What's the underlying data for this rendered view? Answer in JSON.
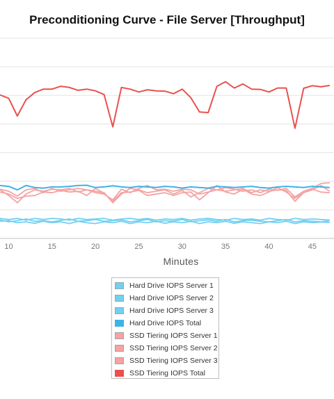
{
  "chart_data": {
    "type": "line",
    "title": "Preconditioning Curve - File Server [Throughput]",
    "xlabel": "Minutes",
    "ylabel": "",
    "x_ticks": [
      10,
      15,
      20,
      25,
      30,
      35,
      40,
      45
    ],
    "xlim": [
      9,
      47.5
    ],
    "ylim": [
      0,
      7
    ],
    "grid": true,
    "legend_position": "bottom",
    "x": [
      9,
      10,
      11,
      12,
      13,
      14,
      15,
      16,
      17,
      18,
      19,
      20,
      21,
      22,
      23,
      24,
      25,
      26,
      27,
      28,
      29,
      30,
      31,
      32,
      33,
      34,
      35,
      36,
      37,
      38,
      39,
      40,
      41,
      42,
      43,
      44,
      45,
      46,
      47
    ],
    "series": [
      {
        "name": "Hard Drive IOPS Server 1",
        "color": "#74d0f1",
        "style": "light",
        "values": [
          0.6,
          0.62,
          0.55,
          0.58,
          0.53,
          0.6,
          0.55,
          0.58,
          0.52,
          0.6,
          0.55,
          0.52,
          0.58,
          0.55,
          0.6,
          0.52,
          0.58,
          0.55,
          0.6,
          0.53,
          0.58,
          0.55,
          0.6,
          0.52,
          0.58,
          0.55,
          0.6,
          0.53,
          0.58,
          0.55,
          0.52,
          0.58,
          0.55,
          0.6,
          0.52,
          0.58,
          0.55,
          0.57,
          0.56
        ]
      },
      {
        "name": "Hard Drive IOPS Server 2",
        "color": "#74d0f1",
        "style": "light",
        "values": [
          0.65,
          0.58,
          0.62,
          0.68,
          0.6,
          0.62,
          0.58,
          0.63,
          0.68,
          0.6,
          0.62,
          0.66,
          0.6,
          0.62,
          0.65,
          0.58,
          0.62,
          0.66,
          0.58,
          0.62,
          0.6,
          0.66,
          0.58,
          0.62,
          0.65,
          0.6,
          0.66,
          0.58,
          0.62,
          0.64,
          0.6,
          0.58,
          0.62,
          0.66,
          0.58,
          0.62,
          0.6,
          0.58,
          0.62
        ]
      },
      {
        "name": "Hard Drive IOPS Server 3",
        "color": "#74d0f1",
        "style": "light",
        "values": [
          0.7,
          0.66,
          0.7,
          0.64,
          0.7,
          0.66,
          0.7,
          0.68,
          0.64,
          0.7,
          0.66,
          0.68,
          0.7,
          0.64,
          0.68,
          0.7,
          0.66,
          0.7,
          0.64,
          0.68,
          0.66,
          0.7,
          0.64,
          0.68,
          0.7,
          0.66,
          0.64,
          0.7,
          0.66,
          0.68,
          0.64,
          0.7,
          0.66,
          0.64,
          0.7,
          0.66,
          0.68,
          0.66,
          0.64
        ]
      },
      {
        "name": "Hard Drive IOPS Total",
        "color": "#3db3e7",
        "style": "dark",
        "values": [
          1.85,
          1.82,
          1.7,
          1.85,
          1.78,
          1.76,
          1.8,
          1.8,
          1.82,
          1.85,
          1.86,
          1.78,
          1.8,
          1.84,
          1.8,
          1.78,
          1.82,
          1.8,
          1.78,
          1.82,
          1.8,
          1.76,
          1.8,
          1.78,
          1.76,
          1.82,
          1.8,
          1.78,
          1.8,
          1.82,
          1.78,
          1.76,
          1.8,
          1.82,
          1.8,
          1.78,
          1.82,
          1.8,
          1.78
        ]
      },
      {
        "name": "SSD Tiering IOPS Server 1",
        "color": "#f5a3a3",
        "style": "light",
        "values": [
          1.7,
          1.5,
          1.25,
          1.55,
          1.7,
          1.65,
          1.72,
          1.7,
          1.75,
          1.62,
          1.7,
          1.65,
          1.6,
          1.25,
          1.55,
          1.75,
          1.7,
          1.6,
          1.65,
          1.7,
          1.55,
          1.68,
          1.45,
          1.6,
          1.75,
          1.7,
          1.65,
          1.7,
          1.75,
          1.6,
          1.7,
          1.65,
          1.7,
          1.68,
          1.3,
          1.6,
          1.7,
          1.85,
          1.65
        ]
      },
      {
        "name": "SSD Tiering IOPS Server 2",
        "color": "#f5a3a3",
        "style": "light",
        "values": [
          1.62,
          1.55,
          1.4,
          1.48,
          1.5,
          1.62,
          1.6,
          1.68,
          1.62,
          1.65,
          1.5,
          1.75,
          1.58,
          1.3,
          1.6,
          1.62,
          1.68,
          1.5,
          1.55,
          1.6,
          1.5,
          1.6,
          1.62,
          1.35,
          1.6,
          1.85,
          1.62,
          1.55,
          1.72,
          1.55,
          1.5,
          1.62,
          1.78,
          1.62,
          1.4,
          1.6,
          1.72,
          1.62,
          1.6
        ]
      },
      {
        "name": "SSD Tiering IOPS Server 3",
        "color": "#f5a3a3",
        "style": "light",
        "values": [
          1.72,
          1.65,
          1.48,
          1.7,
          1.75,
          1.6,
          1.75,
          1.65,
          1.7,
          1.75,
          1.7,
          1.6,
          1.55,
          1.35,
          1.72,
          1.6,
          1.75,
          1.85,
          1.7,
          1.72,
          1.65,
          1.72,
          1.7,
          1.55,
          1.62,
          1.7,
          1.78,
          1.72,
          1.65,
          1.7,
          1.6,
          1.72,
          1.68,
          1.75,
          1.45,
          1.65,
          1.75,
          1.92,
          1.95
        ]
      },
      {
        "name": "SSD Tiering IOPS Total",
        "color": "#e8514f",
        "style": "dark",
        "values": [
          5.02,
          4.9,
          4.28,
          4.85,
          5.1,
          5.22,
          5.22,
          5.32,
          5.28,
          5.18,
          5.22,
          5.16,
          5.03,
          3.9,
          5.28,
          5.22,
          5.12,
          5.2,
          5.16,
          5.15,
          5.06,
          5.22,
          4.92,
          4.42,
          4.4,
          5.32,
          5.48,
          5.26,
          5.4,
          5.22,
          5.21,
          5.12,
          5.26,
          5.26,
          3.85,
          5.25,
          5.34,
          5.3,
          5.35
        ]
      }
    ]
  }
}
